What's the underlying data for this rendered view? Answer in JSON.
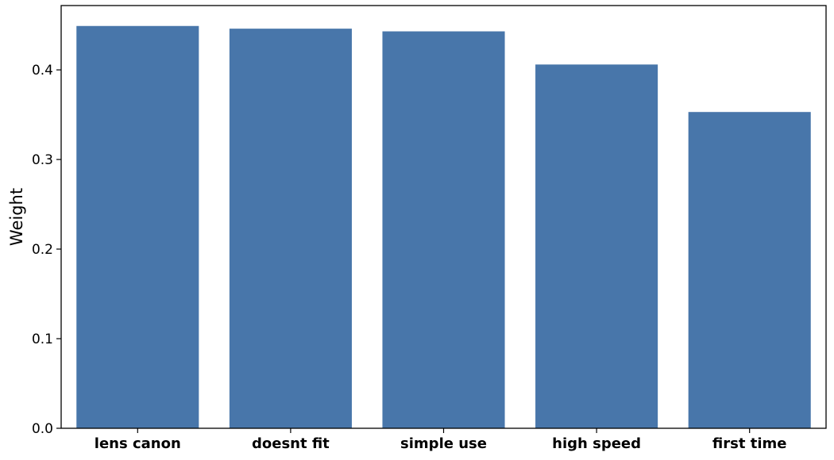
{
  "chart_data": {
    "type": "bar",
    "categories": [
      "lens canon",
      "doesnt fit",
      "simple use",
      "high speed",
      "first time"
    ],
    "values": [
      0.449,
      0.446,
      0.443,
      0.406,
      0.353
    ],
    "title": "",
    "xlabel": "",
    "ylabel": "Weight",
    "ylim": [
      0,
      0.4718
    ],
    "yticks": [
      0.0,
      0.1,
      0.2,
      0.3,
      0.4
    ],
    "ytick_labels": [
      "0.0",
      "0.1",
      "0.2",
      "0.3",
      "0.4"
    ],
    "grid": false,
    "legend": "none",
    "bar_color": "#4876aa"
  }
}
